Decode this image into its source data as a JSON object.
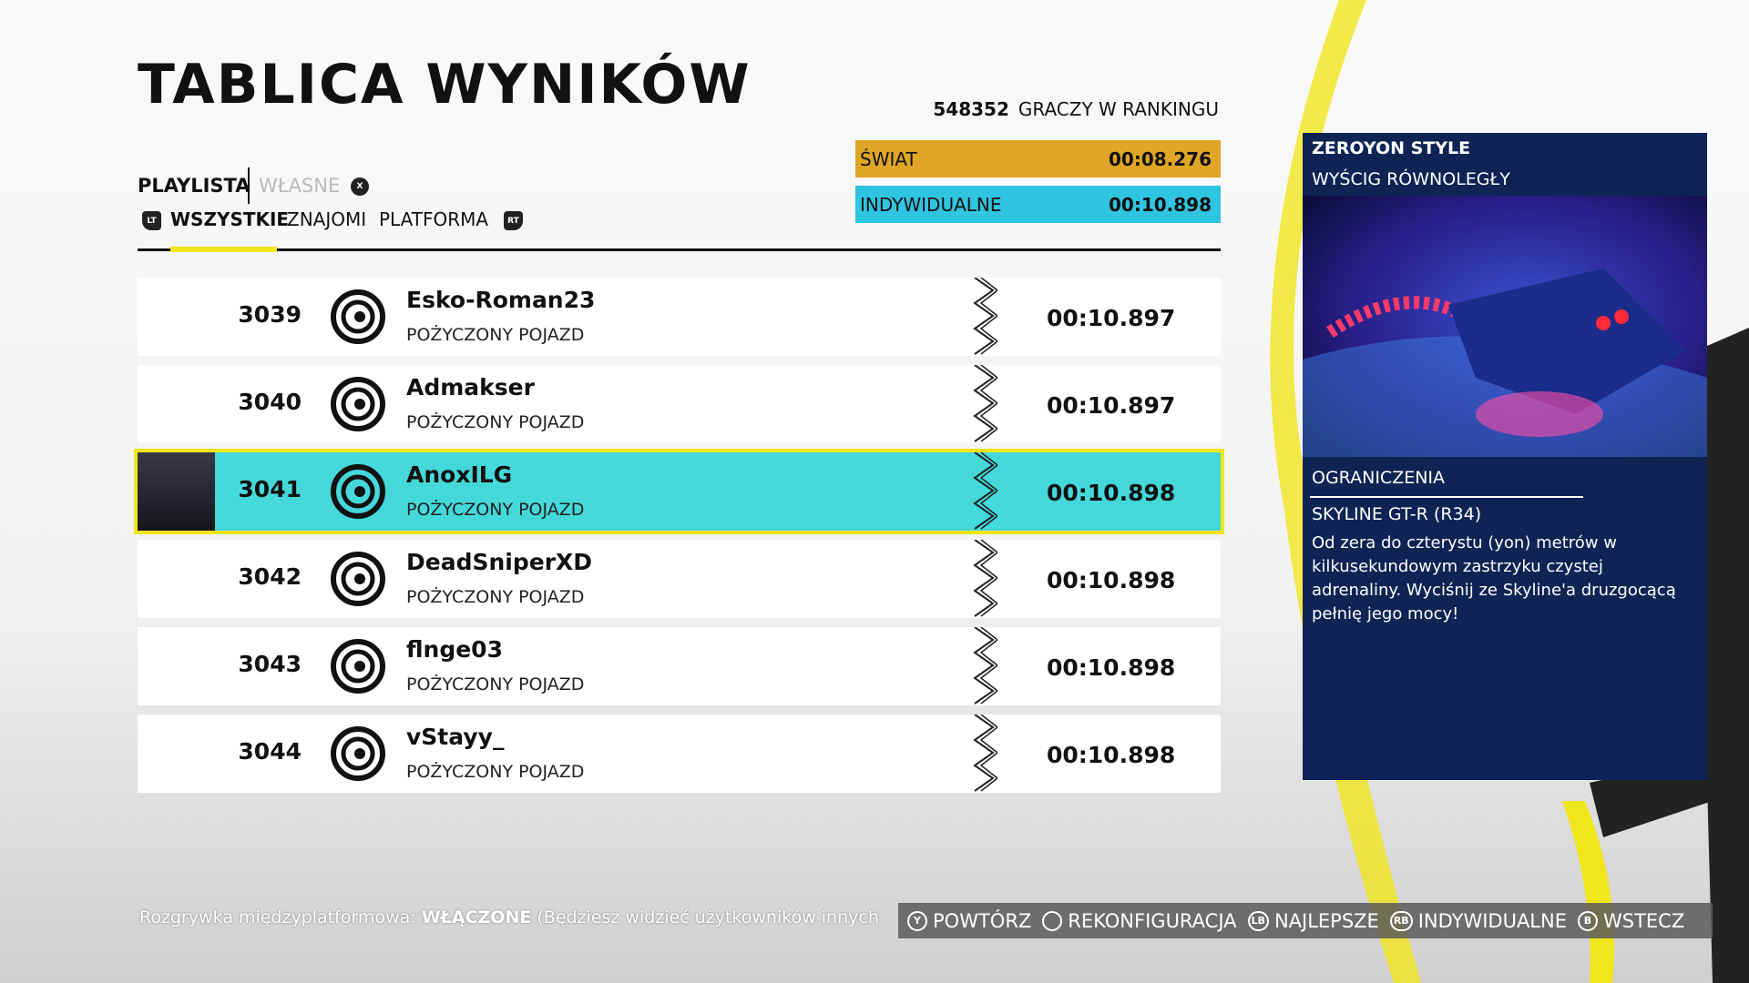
{
  "header": {
    "title": "TABLICA WYNIKÓW",
    "players_count": "548352",
    "players_label": "GRACZY W RANKINGU"
  },
  "tabs": {
    "items": [
      "PLAYLISTA",
      "WŁASNE"
    ],
    "key": "X"
  },
  "filters": {
    "left_key": "LT",
    "items": [
      "WSZYSTKIE",
      "ZNAJOMI",
      "PLATFORMA"
    ],
    "right_key": "RT"
  },
  "scores": [
    {
      "label": "ŚWIAT",
      "time": "00:08.276",
      "color": "#e0a526"
    },
    {
      "label": "INDYWIDUALNE",
      "time": "00:10.898",
      "color": "#2fc4e0"
    }
  ],
  "rows": [
    {
      "rank": "3039",
      "name": "Esko-Roman23",
      "vehicle": "POŻYCZONY POJAZD",
      "time": "00:10.897"
    },
    {
      "rank": "3040",
      "name": "Admakser",
      "vehicle": "POŻYCZONY POJAZD",
      "time": "00:10.897"
    },
    {
      "rank": "3041",
      "name": "AnoxILG",
      "vehicle": "POŻYCZONY POJAZD",
      "time": "00:10.898"
    },
    {
      "rank": "3042",
      "name": "DeadSniperXD",
      "vehicle": "POŻYCZONY POJAZD",
      "time": "00:10.898"
    },
    {
      "rank": "3043",
      "name": "flnge03",
      "vehicle": "POŻYCZONY POJAZD",
      "time": "00:10.898"
    },
    {
      "rank": "3044",
      "name": "vStayy_",
      "vehicle": "POŻYCZONY POJAZD",
      "time": "00:10.898"
    }
  ],
  "panel": {
    "title": "ZEROYON STYLE",
    "mode": "WYŚCIG RÓWNOLEGŁY",
    "restrictions_label": "OGRANICZENIA",
    "car": "SKYLINE GT-R (R34)",
    "description": "Od zera do czterystu (yon) metrów w kilkusekundowym zastrzyku czystej adrenaliny. Wyciśnij ze Skyline'a druzgocącą pełnię jego mocy!"
  },
  "footer": {
    "label": "Rozgrywka międzyplatformowa:",
    "value": "WŁĄCZONE",
    "note": "(Będziesz widzieć użytkowników innych"
  },
  "buttons": [
    {
      "key": "Y",
      "label": "POWTÓRZ"
    },
    {
      "label": "REKONFIGURACJA"
    },
    {
      "key": "LB",
      "label": "NAJLEPSZE"
    },
    {
      "key": "RB",
      "label": "INDYWIDUALNE"
    },
    {
      "key": "B",
      "label": "WSTECZ"
    }
  ]
}
